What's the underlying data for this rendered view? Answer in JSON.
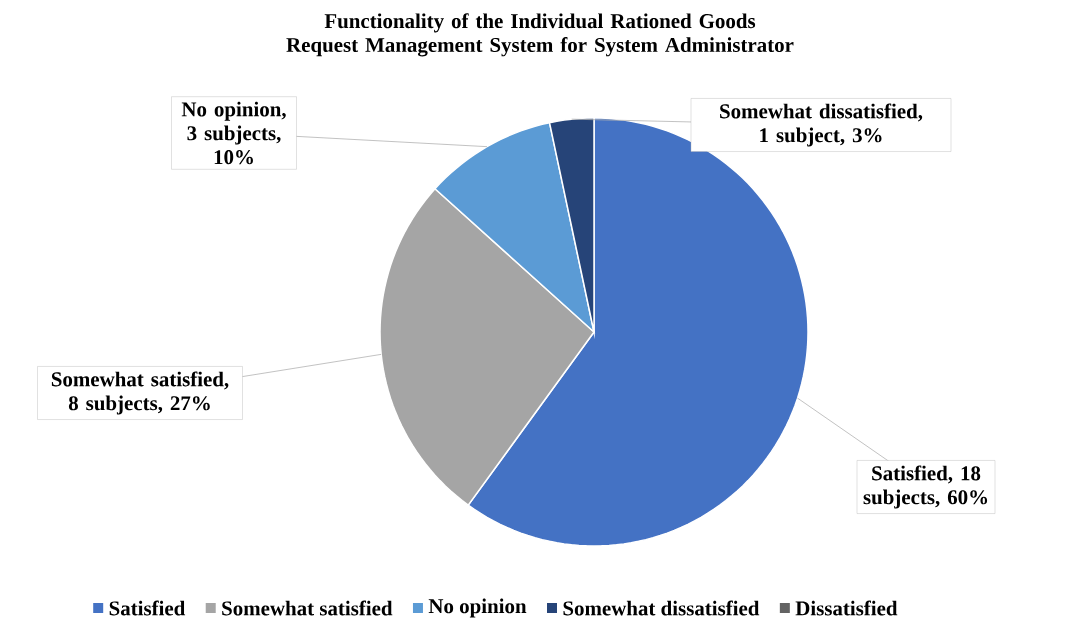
{
  "chart_data": {
    "type": "pie",
    "title": "Functionality of the Individual Rationed Goods Request Management System for System Administrator",
    "categories": [
      "Satisfied",
      "Somewhat satisfied",
      "No opinion",
      "Somewhat dissatisfied",
      "Dissatisfied"
    ],
    "values": [
      18,
      8,
      3,
      1,
      0
    ],
    "colors": [
      "#4472c4",
      "#a5a5a5",
      "#5b9bd5",
      "#264478",
      "#636363"
    ],
    "value_labels": [
      "Satisfied, 18 subjects, 60%",
      "Somewhat satisfied, 8 subjects, 27%",
      "No opinion, 3 subjects, 10%",
      "Somewhat dissatisfied, 1 subject, 3%",
      null
    ],
    "legend": "bottom"
  }
}
